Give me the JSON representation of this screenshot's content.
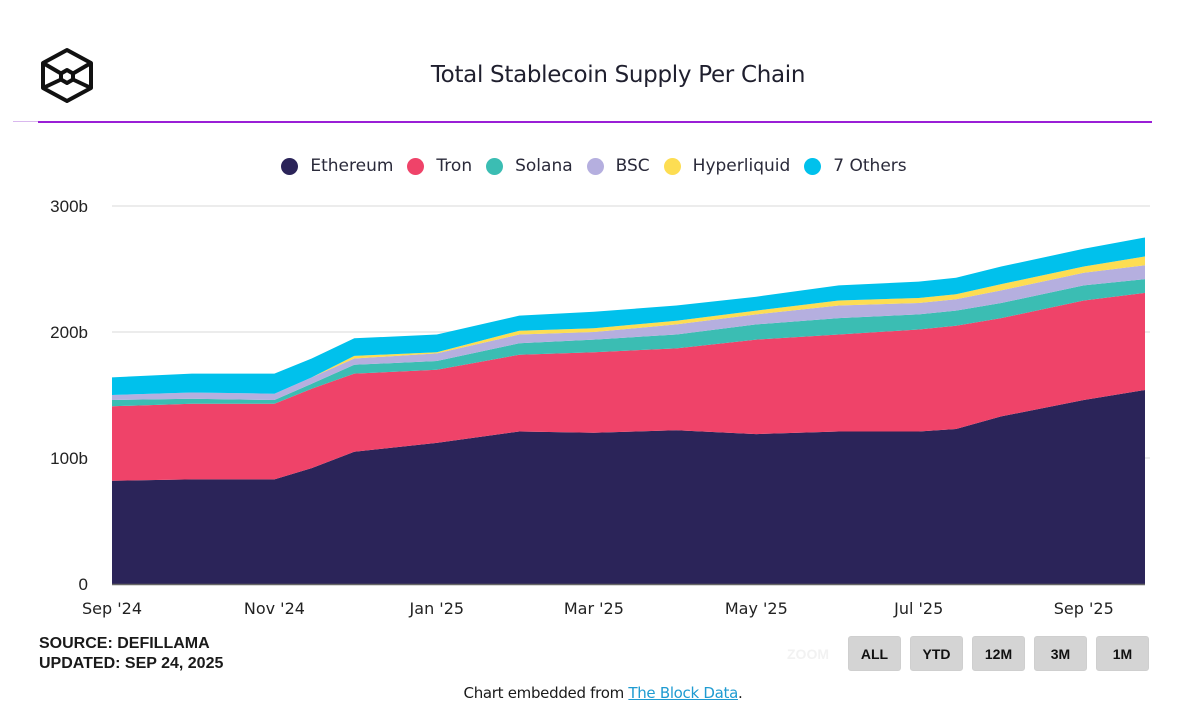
{
  "header": {
    "logo": "the-block-cube-logo",
    "title": "Total Stablecoin Supply Per Chain"
  },
  "colors": {
    "accent_rule": "#9a1fd6",
    "Ethereum": "#2b2459",
    "Tron": "#ef4369",
    "Solana": "#3bbdb3",
    "BSC": "#b5afdf",
    "Hyperliquid": "#fddd52",
    "7 Others": "#00c1ec"
  },
  "legend": [
    {
      "label": "Ethereum",
      "color": "#2b2459"
    },
    {
      "label": "Tron",
      "color": "#ef4369"
    },
    {
      "label": "Solana",
      "color": "#3bbdb3"
    },
    {
      "label": "BSC",
      "color": "#b5afdf"
    },
    {
      "label": "Hyperliquid",
      "color": "#fddd52"
    },
    {
      "label": "7 Others",
      "color": "#00c1ec"
    }
  ],
  "chart_data": {
    "type": "area",
    "stacked": true,
    "title": "Total Stablecoin Supply Per Chain",
    "xlabel": "",
    "ylabel": "",
    "unit": "billion USD",
    "ylim": [
      0,
      300
    ],
    "yticks": [
      0,
      100,
      200,
      300
    ],
    "ytick_labels": [
      "0",
      "100b",
      "200b",
      "300b"
    ],
    "xtick_labels": [
      "Sep '24",
      "Nov '24",
      "Jan '25",
      "Mar '25",
      "May '25",
      "Jul '25",
      "Sep '25"
    ],
    "xlim": [
      "2024-09-01",
      "2025-09-24"
    ],
    "grid": true,
    "legend_position": "top-center",
    "x": [
      "2024-09-01",
      "2024-10-01",
      "2024-11-01",
      "2024-11-15",
      "2024-12-01",
      "2025-01-01",
      "2025-02-01",
      "2025-03-01",
      "2025-04-01",
      "2025-05-01",
      "2025-06-01",
      "2025-07-01",
      "2025-07-15",
      "2025-08-01",
      "2025-09-01",
      "2025-09-24"
    ],
    "series": [
      {
        "name": "Ethereum",
        "values": [
          82,
          83,
          83,
          92,
          105,
          112,
          121,
          120,
          122,
          119,
          121,
          121,
          123,
          133,
          146,
          154
        ]
      },
      {
        "name": "Tron",
        "values": [
          59,
          60,
          60,
          63,
          62,
          58,
          61,
          64,
          65,
          75,
          77,
          81,
          82,
          78,
          79,
          77
        ]
      },
      {
        "name": "Solana",
        "values": [
          5,
          4,
          3,
          4,
          7,
          7,
          9,
          10,
          11,
          12,
          13,
          12,
          12,
          12,
          12,
          11
        ]
      },
      {
        "name": "BSC",
        "values": [
          4,
          5,
          5,
          5,
          5,
          6,
          7,
          6,
          8,
          8,
          10,
          9,
          9,
          10,
          10,
          11
        ]
      },
      {
        "name": "Hyperliquid",
        "values": [
          0,
          0,
          0,
          0,
          2,
          1,
          3,
          3,
          3,
          3,
          4,
          4,
          4,
          5,
          5,
          7
        ]
      },
      {
        "name": "7 Others",
        "values": [
          14,
          15,
          16,
          15,
          14,
          14,
          12,
          13,
          12,
          11,
          12,
          13,
          13,
          14,
          14,
          15
        ]
      }
    ]
  },
  "source": {
    "line1": "SOURCE: DEFILLAMA",
    "line2": "UPDATED: SEP 24, 2025"
  },
  "zoom": {
    "label": "ZOOM",
    "buttons": [
      "ALL",
      "YTD",
      "12M",
      "3M",
      "1M"
    ]
  },
  "footer": {
    "prefix": "Chart embedded from ",
    "link_text": "The Block Data",
    "suffix": "."
  }
}
